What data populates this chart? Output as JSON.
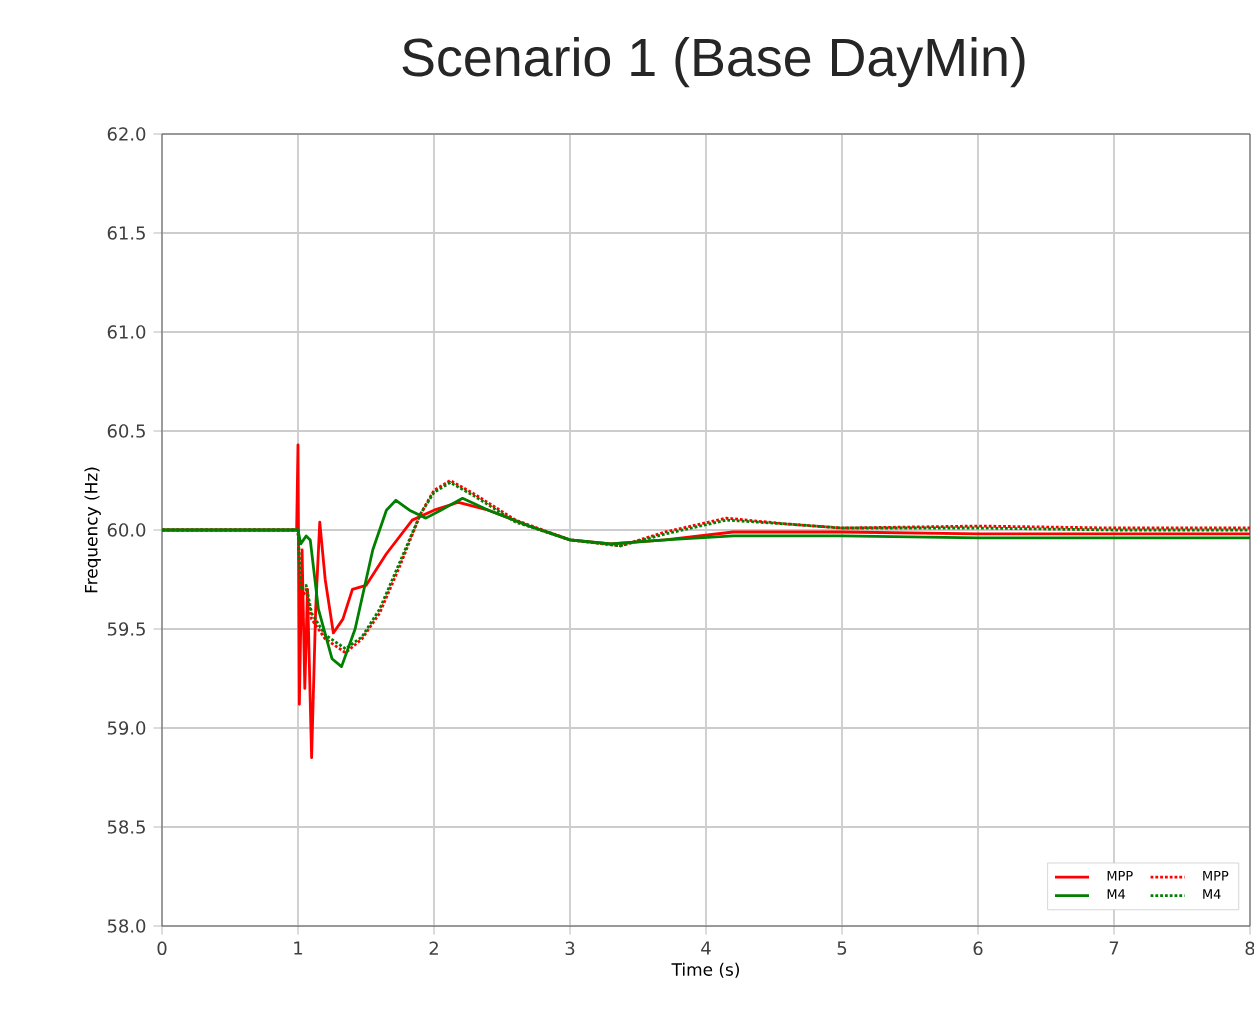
{
  "chart_data": {
    "type": "line",
    "title": "Scenario 1 (Base DayMin)",
    "xlabel": "Time (s)",
    "ylabel": "Frequency (Hz)",
    "xlim": [
      0,
      8
    ],
    "ylim": [
      58,
      62
    ],
    "xticks": [
      0,
      1,
      2,
      3,
      4,
      5,
      6,
      7,
      8
    ],
    "yticks": [
      {
        "value": 58,
        "label": "58.0"
      },
      {
        "value": 58.5,
        "label": "58.5"
      },
      {
        "value": 59,
        "label": "59.0"
      },
      {
        "value": 59.5,
        "label": "59.5"
      },
      {
        "value": 60,
        "label": "60.0"
      },
      {
        "value": 60.5,
        "label": "60.5"
      },
      {
        "value": 61,
        "label": "61.0"
      },
      {
        "value": 61.5,
        "label": "61.5"
      },
      {
        "value": 62,
        "label": "62.0"
      }
    ],
    "grid": true,
    "legend": "bottom right",
    "marker": "none",
    "series": [
      {
        "name": "MPP",
        "color": "#ff0000",
        "line_style": "solid",
        "x": [
          0,
          0.99,
          1.0,
          1.01,
          1.03,
          1.05,
          1.07,
          1.1,
          1.13,
          1.16,
          1.2,
          1.26,
          1.33,
          1.4,
          1.5,
          1.65,
          1.84,
          2.0,
          2.18,
          2.4,
          2.7,
          3.0,
          3.3,
          3.7,
          4.2,
          5,
          6,
          7,
          8
        ],
        "values": [
          60,
          60,
          60.43,
          59.12,
          59.9,
          59.2,
          59.7,
          58.85,
          59.6,
          60.04,
          59.75,
          59.48,
          59.55,
          59.7,
          59.72,
          59.88,
          60.05,
          60.1,
          60.14,
          60.1,
          60.02,
          59.95,
          59.93,
          59.95,
          59.99,
          59.99,
          59.98,
          59.98,
          59.98
        ]
      },
      {
        "name": "MPP",
        "color": "#ff0000",
        "line_style": "dotted",
        "x": [
          0,
          1.0,
          1.02,
          1.06,
          1.1,
          1.2,
          1.35,
          1.47,
          1.6,
          1.75,
          1.9,
          2.0,
          2.12,
          2.3,
          2.6,
          3.0,
          3.37,
          3.7,
          4.15,
          4.6,
          5,
          6,
          7,
          8
        ],
        "values": [
          60,
          60,
          59.65,
          59.7,
          59.55,
          59.45,
          59.38,
          59.45,
          59.58,
          59.82,
          60.08,
          60.2,
          60.25,
          60.18,
          60.05,
          59.95,
          59.92,
          59.99,
          60.06,
          60.03,
          60.01,
          60.02,
          60.01,
          60.01
        ]
      },
      {
        "name": "M4",
        "color": "#008000",
        "line_style": "solid",
        "x": [
          0,
          1.0,
          1.02,
          1.06,
          1.09,
          1.15,
          1.25,
          1.32,
          1.42,
          1.55,
          1.65,
          1.72,
          1.82,
          1.94,
          2.05,
          2.21,
          2.4,
          2.7,
          3.0,
          3.3,
          3.7,
          4.2,
          5,
          6,
          8
        ],
        "values": [
          60,
          60,
          59.93,
          59.97,
          59.95,
          59.6,
          59.35,
          59.31,
          59.5,
          59.9,
          60.1,
          60.15,
          60.1,
          60.06,
          60.1,
          60.16,
          60.1,
          60.02,
          59.95,
          59.93,
          59.95,
          59.97,
          59.97,
          59.96,
          59.96
        ]
      },
      {
        "name": "M4",
        "color": "#008000",
        "line_style": "dotted",
        "x": [
          0,
          1.0,
          1.02,
          1.06,
          1.1,
          1.2,
          1.35,
          1.47,
          1.6,
          1.75,
          1.9,
          2.0,
          2.12,
          2.3,
          2.6,
          3.0,
          3.37,
          3.7,
          4.15,
          4.6,
          5,
          6,
          7,
          8
        ],
        "values": [
          60,
          60,
          59.7,
          59.72,
          59.58,
          59.47,
          59.4,
          59.46,
          59.6,
          59.84,
          60.08,
          60.19,
          60.24,
          60.17,
          60.04,
          59.95,
          59.92,
          59.98,
          60.05,
          60.03,
          60.01,
          60.01,
          60.0,
          60.0
        ]
      }
    ]
  }
}
